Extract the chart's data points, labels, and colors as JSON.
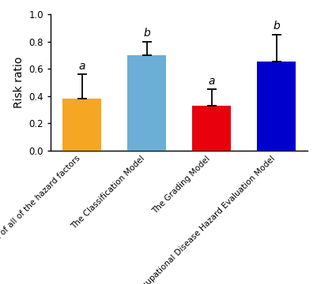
{
  "categories": [
    "The average risk level of all of the hazard factors",
    "The Classification Model",
    "The Grading Model",
    "The Occupational Disease Hazard Evaluation Model"
  ],
  "values": [
    0.38,
    0.7,
    0.33,
    0.65
  ],
  "errors": [
    0.18,
    0.1,
    0.12,
    0.2
  ],
  "bar_colors": [
    "#F5A623",
    "#6BAED6",
    "#E8000D",
    "#0000CC"
  ],
  "sig_labels": [
    "a",
    "b",
    "a",
    "b"
  ],
  "ylabel": "Risk ratio",
  "ylim": [
    0.0,
    1.0
  ],
  "yticks": [
    0.0,
    0.2,
    0.4,
    0.6,
    0.8,
    1.0
  ],
  "bar_width": 0.6,
  "label_fontsize": 10,
  "tick_fontsize": 8.5,
  "sig_fontsize": 10,
  "xtick_fontsize": 7.5,
  "background_color": "#ffffff",
  "error_capsize": 4,
  "error_linewidth": 1.3,
  "spine_linewidth": 1.0
}
